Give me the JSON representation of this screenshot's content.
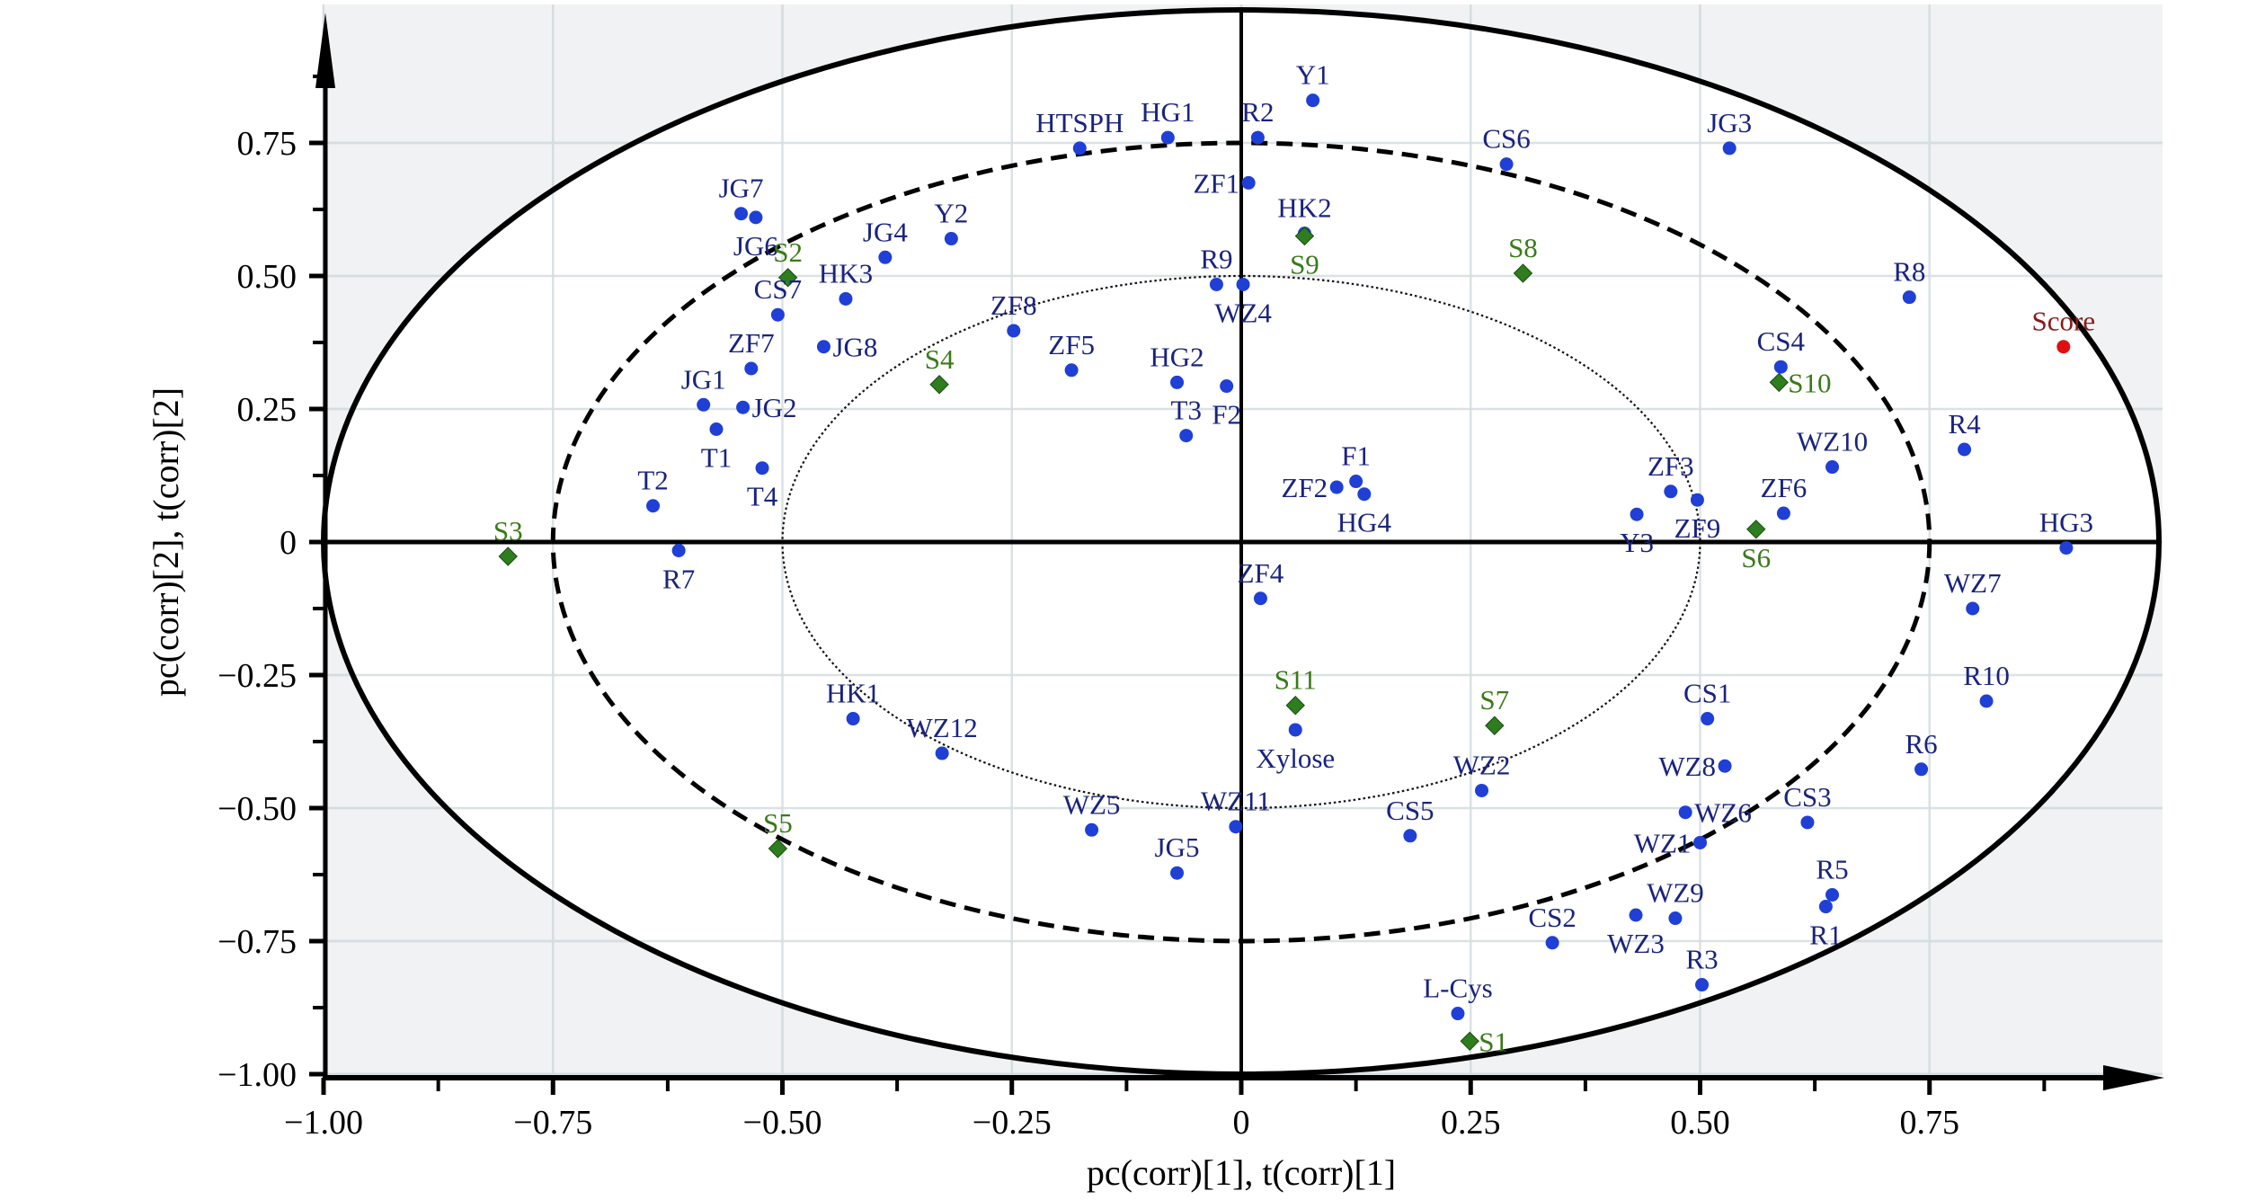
{
  "chart_data": {
    "type": "scatter",
    "title": "",
    "xlabel": "pc(corr)[1], t(corr)[1]",
    "ylabel": "pc(corr)[2], t(corr)[2]",
    "xlim": [
      -1.0,
      1.0
    ],
    "ylim": [
      -1.0,
      0.95
    ],
    "x_ticks": [
      -1.0,
      -0.75,
      -0.5,
      -0.25,
      0,
      0.25,
      0.5,
      0.75
    ],
    "x_tick_labels": [
      "−1.00",
      "−0.75",
      "−0.50",
      "−0.25",
      "0",
      "0.25",
      "0.50",
      "0.75"
    ],
    "y_ticks": [
      0.75,
      0.5,
      0.25,
      0,
      -0.25,
      -0.5,
      -0.75,
      -1.0
    ],
    "y_tick_labels": [
      "0.75",
      "0.50",
      "0.25",
      "0",
      "−0.25",
      "−0.50",
      "−0.75",
      "−1.00"
    ],
    "grid": true,
    "ellipses": [
      {
        "name": "outer",
        "radius": 1.0,
        "style": "solid"
      },
      {
        "name": "r2x-75",
        "radius": 0.75,
        "style": "dashed"
      },
      {
        "name": "r2x-50",
        "radius": 0.5,
        "style": "dotted"
      }
    ],
    "colors": {
      "variables": "#1f3fd6",
      "variable_labels": "#1a237e",
      "samples": "#2e7d1f",
      "sample_labels": "#3a7a1a",
      "score": "#e01010",
      "score_label": "#8b1a1a",
      "plot_bg": "#f0f2f3",
      "grid": "#d5dde0"
    },
    "series": [
      {
        "name": "variables",
        "marker": "circle",
        "points": [
          {
            "label": "Y1",
            "x": 0.078,
            "y": 0.83,
            "pos": "above"
          },
          {
            "label": "HTSPH",
            "x": -0.176,
            "y": 0.74,
            "pos": "above"
          },
          {
            "label": "HG1",
            "x": -0.08,
            "y": 0.76,
            "pos": "above"
          },
          {
            "label": "R2",
            "x": 0.018,
            "y": 0.76,
            "pos": "above"
          },
          {
            "label": "ZF1",
            "x": 0.008,
            "y": 0.675,
            "pos": "left"
          },
          {
            "label": "HK2",
            "x": 0.069,
            "y": 0.58,
            "pos": "above"
          },
          {
            "label": "CS6",
            "x": 0.289,
            "y": 0.71,
            "pos": "above"
          },
          {
            "label": "JG3",
            "x": 0.532,
            "y": 0.74,
            "pos": "above"
          },
          {
            "label": "JG7",
            "x": -0.545,
            "y": 0.617,
            "pos": "above"
          },
          {
            "label": "JG6",
            "x": -0.529,
            "y": 0.61,
            "pos": "below"
          },
          {
            "label": "CS7",
            "x": -0.505,
            "y": 0.427,
            "pos": "above"
          },
          {
            "label": "HK3",
            "x": -0.431,
            "y": 0.457,
            "pos": "above"
          },
          {
            "label": "JG4",
            "x": -0.388,
            "y": 0.535,
            "pos": "above"
          },
          {
            "label": "Y2",
            "x": -0.316,
            "y": 0.57,
            "pos": "above"
          },
          {
            "label": "JG8",
            "x": -0.455,
            "y": 0.367,
            "pos": "right"
          },
          {
            "label": "ZF7",
            "x": -0.534,
            "y": 0.326,
            "pos": "above"
          },
          {
            "label": "JG1",
            "x": -0.586,
            "y": 0.258,
            "pos": "above"
          },
          {
            "label": "JG2",
            "x": -0.543,
            "y": 0.253,
            "pos": "right"
          },
          {
            "label": "T1",
            "x": -0.572,
            "y": 0.212,
            "pos": "below"
          },
          {
            "label": "T4",
            "x": -0.522,
            "y": 0.139,
            "pos": "below"
          },
          {
            "label": "T2",
            "x": -0.641,
            "y": 0.068,
            "pos": "above"
          },
          {
            "label": "R7",
            "x": -0.613,
            "y": -0.016,
            "pos": "below"
          },
          {
            "label": "ZF8",
            "x": -0.248,
            "y": 0.397,
            "pos": "above"
          },
          {
            "label": "ZF5",
            "x": -0.185,
            "y": 0.323,
            "pos": "above"
          },
          {
            "label": "R9",
            "x": -0.027,
            "y": 0.484,
            "pos": "above"
          },
          {
            "label": "WZ4",
            "x": 0.002,
            "y": 0.484,
            "pos": "below"
          },
          {
            "label": "HG2",
            "x": -0.07,
            "y": 0.3,
            "pos": "above"
          },
          {
            "label": "F2",
            "x": -0.016,
            "y": 0.293,
            "pos": "below"
          },
          {
            "label": "T3",
            "x": -0.06,
            "y": 0.2,
            "pos": "above"
          },
          {
            "label": "F1",
            "x": 0.125,
            "y": 0.114,
            "pos": "above"
          },
          {
            "label": "ZF2",
            "x": 0.104,
            "y": 0.103,
            "pos": "left"
          },
          {
            "label": "HG4",
            "x": 0.134,
            "y": 0.09,
            "pos": "below"
          },
          {
            "label": "R8",
            "x": 0.728,
            "y": 0.46,
            "pos": "above"
          },
          {
            "label": "CS4",
            "x": 0.588,
            "y": 0.329,
            "pos": "above"
          },
          {
            "label": "R4",
            "x": 0.788,
            "y": 0.174,
            "pos": "above"
          },
          {
            "label": "WZ10",
            "x": 0.644,
            "y": 0.141,
            "pos": "above"
          },
          {
            "label": "ZF3",
            "x": 0.468,
            "y": 0.095,
            "pos": "above"
          },
          {
            "label": "ZF9",
            "x": 0.497,
            "y": 0.079,
            "pos": "below"
          },
          {
            "label": "Y3",
            "x": 0.431,
            "y": 0.052,
            "pos": "below"
          },
          {
            "label": "ZF6",
            "x": 0.591,
            "y": 0.054,
            "pos": "above"
          },
          {
            "label": "HG3",
            "x": 0.899,
            "y": -0.011,
            "pos": "above"
          },
          {
            "label": "WZ7",
            "x": 0.797,
            "y": -0.125,
            "pos": "above"
          },
          {
            "label": "ZF4",
            "x": 0.021,
            "y": -0.106,
            "pos": "above"
          },
          {
            "label": "R10",
            "x": 0.812,
            "y": -0.299,
            "pos": "above"
          },
          {
            "label": "Xylose",
            "x": 0.059,
            "y": -0.353,
            "pos": "below"
          },
          {
            "label": "CS1",
            "x": 0.508,
            "y": -0.332,
            "pos": "above"
          },
          {
            "label": "HK1",
            "x": -0.423,
            "y": -0.332,
            "pos": "above"
          },
          {
            "label": "WZ12",
            "x": -0.326,
            "y": -0.397,
            "pos": "above"
          },
          {
            "label": "R6",
            "x": 0.741,
            "y": -0.427,
            "pos": "above"
          },
          {
            "label": "WZ8",
            "x": 0.527,
            "y": -0.421,
            "pos": "left"
          },
          {
            "label": "WZ2",
            "x": 0.262,
            "y": -0.467,
            "pos": "above"
          },
          {
            "label": "WZ6",
            "x": 0.484,
            "y": -0.508,
            "pos": "right"
          },
          {
            "label": "CS3",
            "x": 0.617,
            "y": -0.527,
            "pos": "above"
          },
          {
            "label": "CS5",
            "x": 0.184,
            "y": -0.552,
            "pos": "above"
          },
          {
            "label": "WZ11",
            "x": -0.006,
            "y": -0.535,
            "pos": "above"
          },
          {
            "label": "WZ5",
            "x": -0.163,
            "y": -0.541,
            "pos": "above"
          },
          {
            "label": "WZ1",
            "x": 0.5,
            "y": -0.565,
            "pos": "left"
          },
          {
            "label": "JG5",
            "x": -0.07,
            "y": -0.622,
            "pos": "above"
          },
          {
            "label": "R5",
            "x": 0.644,
            "y": -0.663,
            "pos": "above"
          },
          {
            "label": "R1",
            "x": 0.637,
            "y": -0.685,
            "pos": "below"
          },
          {
            "label": "WZ3",
            "x": 0.43,
            "y": -0.701,
            "pos": "below"
          },
          {
            "label": "WZ9",
            "x": 0.473,
            "y": -0.707,
            "pos": "above"
          },
          {
            "label": "CS2",
            "x": 0.339,
            "y": -0.753,
            "pos": "above"
          },
          {
            "label": "R3",
            "x": 0.502,
            "y": -0.832,
            "pos": "above"
          },
          {
            "label": "L-Cys",
            "x": 0.236,
            "y": -0.886,
            "pos": "above"
          }
        ]
      },
      {
        "name": "samples",
        "marker": "diamond",
        "points": [
          {
            "label": "S1",
            "x": 0.249,
            "y": -0.938,
            "pos": "right"
          },
          {
            "label": "S2",
            "x": -0.494,
            "y": 0.497,
            "pos": "above"
          },
          {
            "label": "S3",
            "x": -0.799,
            "y": -0.027,
            "pos": "above"
          },
          {
            "label": "S4",
            "x": -0.329,
            "y": 0.296,
            "pos": "above"
          },
          {
            "label": "S5",
            "x": -0.505,
            "y": -0.576,
            "pos": "above"
          },
          {
            "label": "S6",
            "x": 0.561,
            "y": 0.024,
            "pos": "below"
          },
          {
            "label": "S7",
            "x": 0.276,
            "y": -0.345,
            "pos": "above"
          },
          {
            "label": "S8",
            "x": 0.307,
            "y": 0.505,
            "pos": "above"
          },
          {
            "label": "S9",
            "x": 0.069,
            "y": 0.575,
            "pos": "below"
          },
          {
            "label": "S10",
            "x": 0.586,
            "y": 0.3,
            "pos": "right"
          },
          {
            "label": "S11",
            "x": 0.059,
            "y": -0.307,
            "pos": "above"
          }
        ]
      },
      {
        "name": "score",
        "marker": "circle",
        "points": [
          {
            "label": "Score",
            "x": 0.896,
            "y": 0.367,
            "pos": "above"
          }
        ]
      }
    ]
  }
}
